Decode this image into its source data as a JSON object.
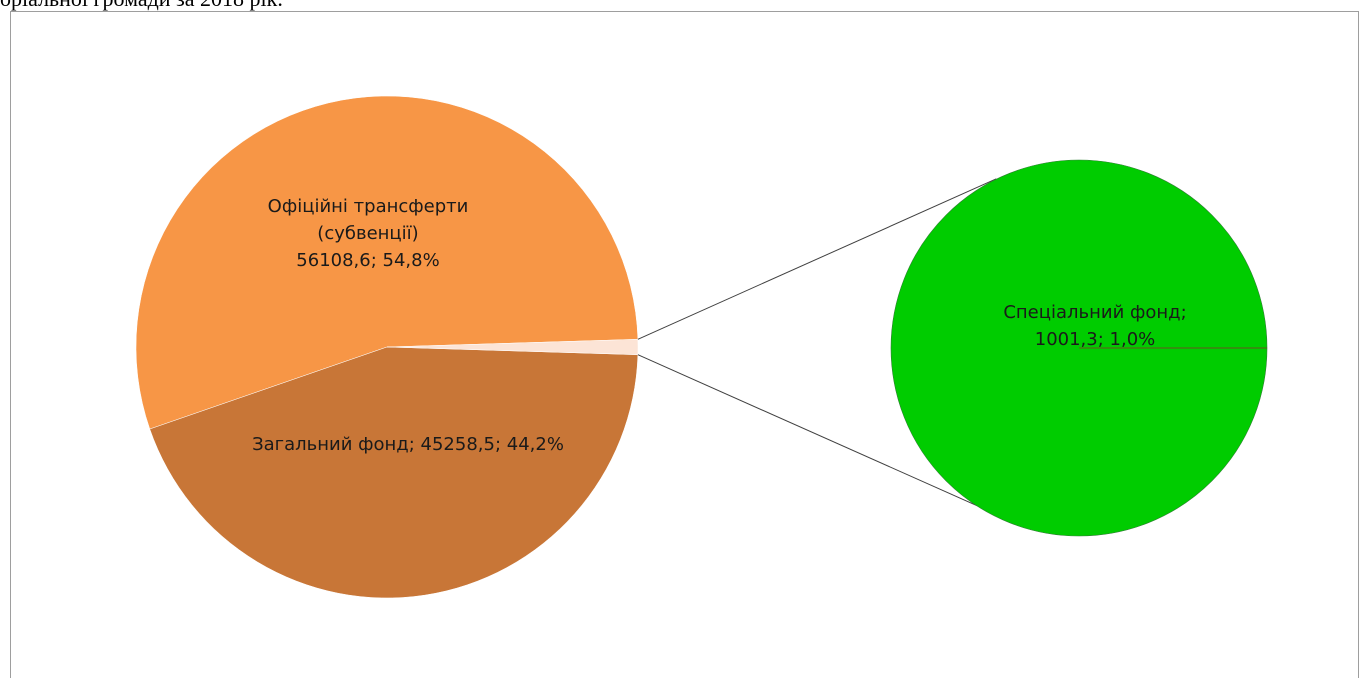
{
  "document": {
    "caption_fragment": "оріальної громади за 2018 рік."
  },
  "chart_data": {
    "type": "pie",
    "variant": "pie-of-pie",
    "title": "",
    "slices": [
      {
        "label_lines": [
          "Офіційні трансферти",
          "(субвенції)",
          "56108,6; 54,8%"
        ],
        "value": 56108.6,
        "percent": 54.8,
        "color": "#f79646"
      },
      {
        "label_lines": [
          "Загальний фонд; 45258,5; 44,2%"
        ],
        "value": 45258.5,
        "percent": 44.2,
        "color": "#c87637"
      },
      {
        "label_lines": [
          "Спеціальний фонд;",
          "1001,3; 1,0%"
        ],
        "value": 1001.3,
        "percent": 1.0,
        "color": "#00cc00"
      }
    ],
    "other_slice_color": "#fce4d6",
    "connector_color": "#404040",
    "legend": "none"
  }
}
